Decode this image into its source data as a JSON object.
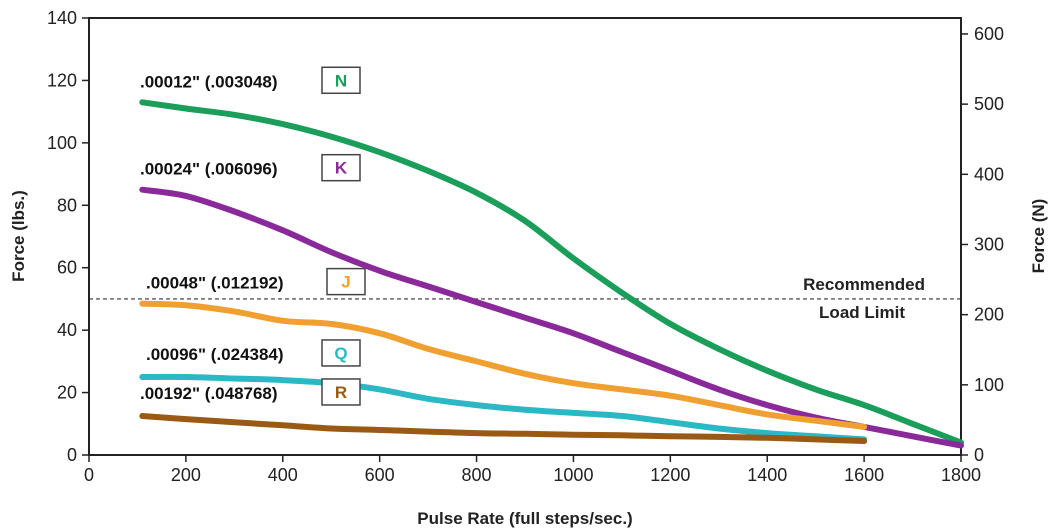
{
  "chart_data": {
    "type": "line",
    "xlabel": "Pulse Rate (full steps/sec.)",
    "ylabel": "Force (lbs.)",
    "ylabel_right": "Force (N)",
    "xlim": [
      0,
      1800
    ],
    "ylim": [
      0,
      140
    ],
    "ylim_right": [
      0,
      622.75
    ],
    "x_ticks": [
      0,
      200,
      400,
      600,
      800,
      1000,
      1200,
      1400,
      1600,
      1800
    ],
    "y_ticks": [
      0,
      20,
      40,
      60,
      80,
      100,
      120,
      140
    ],
    "y_ticks_right": [
      0,
      100,
      200,
      300,
      400,
      500,
      600
    ],
    "grid": false,
    "reference_line": {
      "y": 50,
      "label_line1": "Recommended",
      "label_line2": "Load Limit"
    },
    "series": [
      {
        "label": ".00012\" (.003048)",
        "badge": "N",
        "color": "#1a9e5a",
        "x": [
          110,
          200,
          300,
          400,
          500,
          600,
          700,
          800,
          900,
          1000,
          1100,
          1200,
          1300,
          1400,
          1500,
          1600,
          1700,
          1800
        ],
        "y": [
          113,
          111,
          109,
          106,
          102,
          97,
          91,
          84,
          75,
          63,
          52,
          42,
          34,
          27,
          21,
          16,
          10,
          4
        ]
      },
      {
        "label": ".00024\" (.006096)",
        "badge": "K",
        "color": "#8a2a9a",
        "x": [
          110,
          200,
          300,
          400,
          500,
          600,
          700,
          800,
          900,
          1000,
          1100,
          1200,
          1300,
          1400,
          1500,
          1600,
          1700,
          1800
        ],
        "y": [
          85,
          83,
          78,
          72,
          65,
          59,
          54,
          49,
          44,
          39,
          33,
          27,
          21,
          16,
          12,
          9,
          6,
          3
        ]
      },
      {
        "label": ".00048\" (.012192)",
        "badge": "J",
        "color": "#f0a030",
        "x": [
          110,
          200,
          300,
          400,
          500,
          600,
          700,
          800,
          900,
          1000,
          1100,
          1200,
          1300,
          1400,
          1500,
          1600
        ],
        "y": [
          48.5,
          48,
          46,
          43,
          42,
          39,
          34,
          30,
          26,
          23,
          21,
          19,
          16,
          13,
          11,
          9
        ]
      },
      {
        "label": ".00096\" (.024384)",
        "badge": "Q",
        "color": "#2ab8c4",
        "x": [
          110,
          200,
          300,
          400,
          500,
          600,
          700,
          800,
          900,
          1000,
          1100,
          1200,
          1300,
          1400,
          1500,
          1600
        ],
        "y": [
          25,
          25,
          24.5,
          24,
          23,
          21,
          18,
          16,
          14.5,
          13.5,
          12.5,
          10.5,
          8.5,
          7,
          6,
          5
        ]
      },
      {
        "label": ".00192\" (.048768)",
        "badge": "R",
        "color": "#9a5a14",
        "x": [
          110,
          200,
          300,
          400,
          500,
          600,
          700,
          800,
          900,
          1000,
          1100,
          1200,
          1300,
          1400,
          1500,
          1600
        ],
        "y": [
          12.5,
          11.5,
          10.5,
          9.5,
          8.5,
          8,
          7.5,
          7,
          6.8,
          6.5,
          6.3,
          6,
          5.8,
          5.5,
          5,
          4.5
        ]
      }
    ]
  }
}
